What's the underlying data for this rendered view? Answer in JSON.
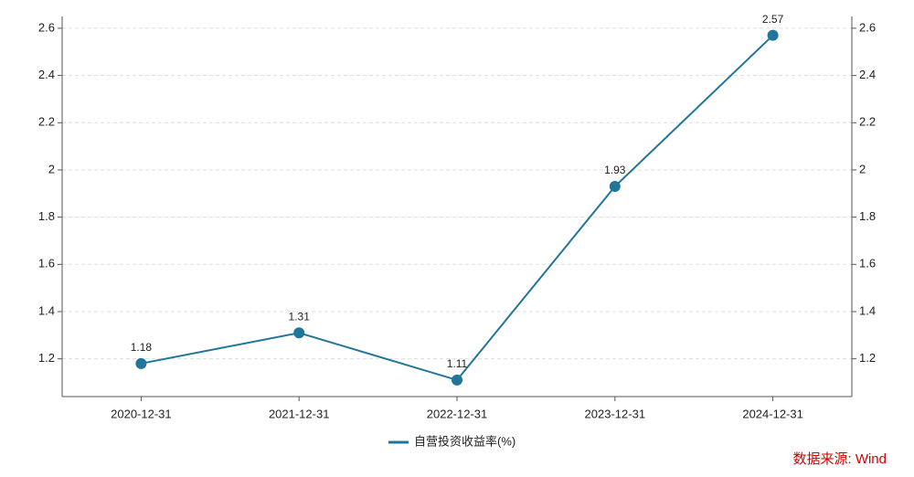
{
  "chart_data": {
    "type": "line",
    "categories": [
      "2020-12-31",
      "2021-12-31",
      "2022-12-31",
      "2023-12-31",
      "2024-12-31"
    ],
    "series": [
      {
        "name": "自营投资收益率(%)",
        "color": "#21759b",
        "values": [
          1.18,
          1.31,
          1.11,
          1.93,
          2.57
        ]
      }
    ],
    "ylim": [
      1.04,
      2.65
    ],
    "yticks": [
      1.2,
      1.4,
      1.6,
      1.8,
      2,
      2.2,
      2.4,
      2.6
    ],
    "y2lim": [
      1.04,
      2.65
    ],
    "y2ticks": [
      1.2,
      1.4,
      1.6,
      1.8,
      2,
      2.2,
      2.4,
      2.6
    ],
    "grid": true,
    "legend": "bottom",
    "source": "数据来源: Wind"
  }
}
